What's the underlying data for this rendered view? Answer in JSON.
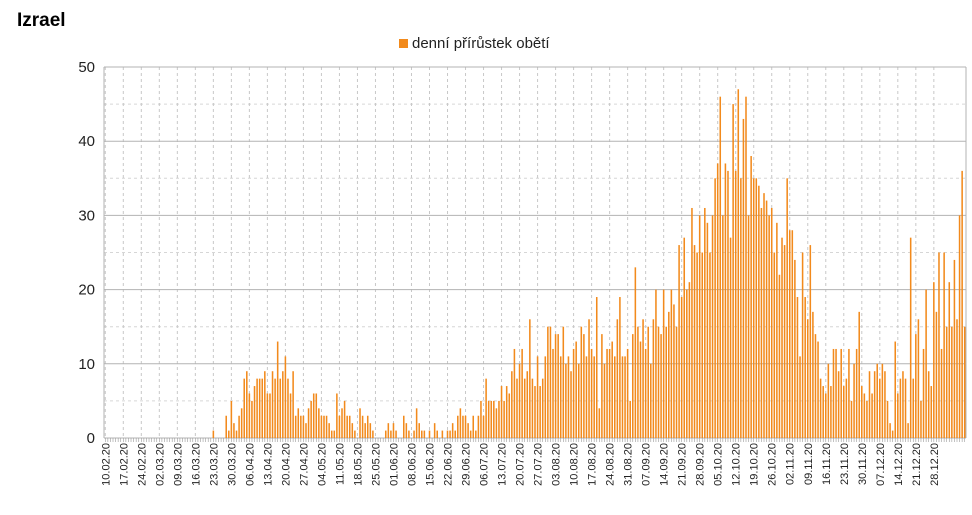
{
  "chart_data": {
    "type": "bar",
    "title": "Izrael",
    "legend": {
      "position": "top-center"
    },
    "series": [
      {
        "name": "denní přírůstek obětí",
        "color": "#f28a1c"
      }
    ],
    "ylim": [
      0,
      50
    ],
    "yticks": [
      0,
      10,
      20,
      30,
      40,
      50
    ],
    "grid": true,
    "x_start_date": "2020-02-10",
    "x_end_date": "2020-12-31",
    "xtick_labels": [
      "10.02.20",
      "17.02.20",
      "24.02.20",
      "02.03.20",
      "09.03.20",
      "16.03.20",
      "23.03.20",
      "30.03.20",
      "06.04.20",
      "13.04.20",
      "20.04.20",
      "27.04.20",
      "04.05.20",
      "11.05.20",
      "18.05.20",
      "25.05.20",
      "01.06.20",
      "08.06.20",
      "15.06.20",
      "22.06.20",
      "29.06.20",
      "06.07.20",
      "13.07.20",
      "20.07.20",
      "27.07.20",
      "03.08.20",
      "10.08.20",
      "17.08.20",
      "24.08.20",
      "31.08.20",
      "07.09.20",
      "14.09.20",
      "21.09.20",
      "28.09.20",
      "05.10.20",
      "12.10.20",
      "19.10.20",
      "26.10.20",
      "02.11.20",
      "09.11.20",
      "16.11.20",
      "23.11.20",
      "30.11.20",
      "07.12.20",
      "14.12.20",
      "21.12.20",
      "28.12.20"
    ],
    "values": [
      0,
      0,
      0,
      0,
      0,
      0,
      0,
      0,
      0,
      0,
      0,
      0,
      0,
      0,
      0,
      0,
      0,
      0,
      0,
      0,
      0,
      0,
      0,
      0,
      0,
      0,
      0,
      0,
      0,
      0,
      0,
      0,
      0,
      0,
      0,
      0,
      0,
      0,
      0,
      0,
      0,
      0,
      1,
      0,
      0,
      0,
      0,
      3,
      1,
      5,
      2,
      1,
      3,
      4,
      8,
      9,
      6,
      5,
      7,
      8,
      8,
      8,
      9,
      6,
      6,
      9,
      8,
      13,
      8,
      9,
      11,
      8,
      6,
      9,
      3,
      4,
      3,
      3,
      2,
      4,
      5,
      6,
      6,
      4,
      3,
      3,
      3,
      2,
      1,
      1,
      6,
      3,
      4,
      5,
      3,
      3,
      2,
      1,
      0,
      4,
      3,
      2,
      3,
      2,
      1,
      0,
      0,
      0,
      0,
      1,
      2,
      1,
      2,
      1,
      0,
      0,
      3,
      2,
      1,
      0,
      1,
      4,
      2,
      1,
      1,
      0,
      1,
      0,
      2,
      1,
      0,
      1,
      0,
      1,
      1,
      2,
      1,
      3,
      4,
      3,
      3,
      2,
      1,
      3,
      1,
      3,
      5,
      3,
      8,
      5,
      5,
      5,
      4,
      5,
      7,
      5,
      7,
      6,
      9,
      12,
      8,
      10,
      12,
      8,
      9,
      16,
      8,
      7,
      11,
      7,
      8,
      11,
      15,
      15,
      12,
      14,
      14,
      11,
      15,
      10,
      11,
      9,
      12,
      13,
      10,
      15,
      14,
      11,
      16,
      12,
      11,
      19,
      4,
      14,
      10,
      12,
      12,
      13,
      11,
      16,
      19,
      11,
      11,
      12,
      5,
      14,
      23,
      15,
      13,
      16,
      12,
      15,
      10,
      16,
      20,
      15,
      14,
      20,
      15,
      17,
      20,
      18,
      15,
      26,
      19,
      27,
      20,
      21,
      31,
      26,
      25,
      30,
      25,
      31,
      29,
      25,
      30,
      35,
      37,
      46,
      30,
      37,
      36,
      27,
      45,
      36,
      47,
      35,
      43,
      46,
      30,
      38,
      35,
      35,
      34,
      31,
      33,
      32,
      30,
      31,
      25,
      29,
      22,
      27,
      26,
      35,
      28,
      28,
      24,
      19,
      11,
      25,
      19,
      16,
      26,
      17,
      14,
      13,
      8,
      7,
      6,
      10,
      7,
      12,
      12,
      9,
      12,
      7,
      8,
      12,
      5,
      10,
      12,
      17,
      7,
      6,
      5,
      9,
      6,
      9,
      10,
      8,
      10,
      9,
      5,
      2,
      1,
      13,
      6,
      8,
      9,
      8,
      2,
      27,
      8,
      14,
      16,
      5,
      12,
      20,
      9,
      7,
      21,
      17,
      25,
      12,
      25,
      15,
      21,
      15,
      24,
      16,
      30,
      36,
      15
    ]
  }
}
